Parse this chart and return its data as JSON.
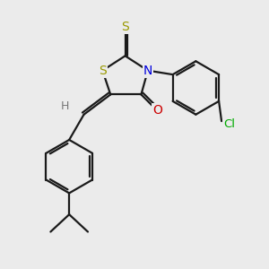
{
  "bg_color": "#ebebeb",
  "bond_color": "#1a1a1a",
  "bond_width": 1.6,
  "S_color": "#999900",
  "N_color": "#0000dd",
  "O_color": "#cc0000",
  "Cl_color": "#00aa00",
  "H_color": "#777777",
  "figsize": [
    3.0,
    3.0
  ],
  "dpi": 100,
  "xlim": [
    0,
    10
  ],
  "ylim": [
    0,
    10
  ]
}
